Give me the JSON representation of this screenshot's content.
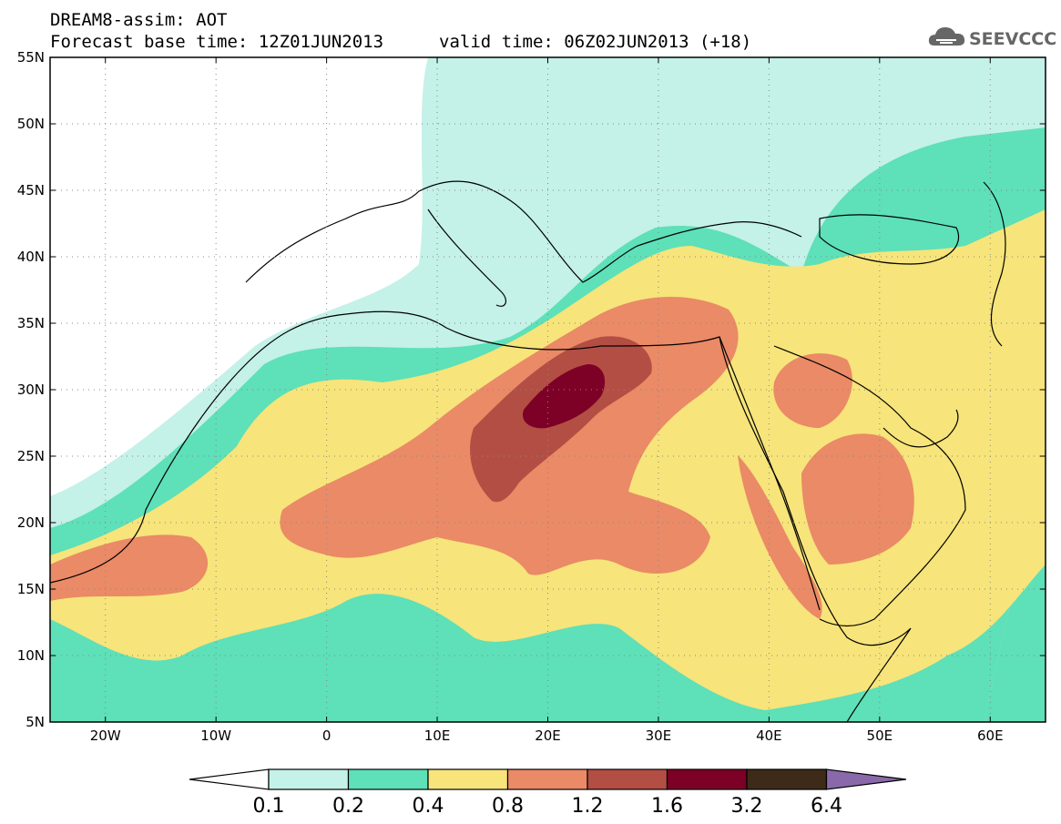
{
  "header": {
    "title": "DREAM8-assim: AOT",
    "base_time": "Forecast base time: 12Z01JUN2013",
    "valid_time": "valid time: 06Z02JUN2013 (+18)"
  },
  "logo": {
    "text": "SEEVCCC",
    "icon": "cloud-icon"
  },
  "map": {
    "lat_labels": [
      "55N",
      "50N",
      "45N",
      "40N",
      "35N",
      "30N",
      "25N",
      "20N",
      "15N",
      "10N",
      "5N"
    ],
    "lon_labels": [
      "20W",
      "10W",
      "0",
      "10E",
      "20E",
      "30E",
      "40E",
      "50E",
      "60E"
    ],
    "lat_range": [
      5,
      55
    ],
    "lon_range": [
      -25,
      65
    ],
    "grid": "dotted"
  },
  "colorbar": {
    "levels": [
      "0.1",
      "0.2",
      "0.4",
      "0.8",
      "1.2",
      "1.6",
      "3.2",
      "6.4"
    ],
    "colors": [
      "#ffffff",
      "#c4f1e8",
      "#5ee0b8",
      "#f7e47a",
      "#ea8a66",
      "#b34e44",
      "#7d0026",
      "#3d2a18",
      "#8a69aa"
    ]
  },
  "colors": {
    "c01": "#c4f1e8",
    "c02": "#5ee0b8",
    "c04": "#f7e47a",
    "c08": "#ea8a66",
    "c12": "#b34e44",
    "c16": "#7d0026"
  }
}
